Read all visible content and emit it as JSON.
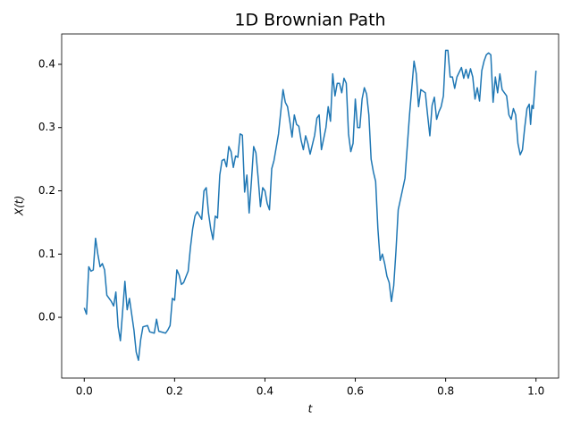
{
  "chart_data": {
    "type": "line",
    "title": "1D Brownian Path",
    "x_label": "t",
    "y_label": "X(t)",
    "x": [
      0,
      0.005,
      0.01,
      0.015,
      0.02,
      0.025,
      0.03,
      0.035,
      0.04,
      0.045,
      0.05,
      0.06,
      0.065,
      0.07,
      0.075,
      0.08,
      0.085,
      0.09,
      0.095,
      0.1,
      0.11,
      0.115,
      0.12,
      0.125,
      0.13,
      0.14,
      0.145,
      0.155,
      0.16,
      0.165,
      0.18,
      0.185,
      0.19,
      0.195,
      0.2,
      0.205,
      0.21,
      0.215,
      0.22,
      0.23,
      0.235,
      0.24,
      0.245,
      0.25,
      0.26,
      0.265,
      0.27,
      0.275,
      0.28,
      0.285,
      0.29,
      0.295,
      0.3,
      0.305,
      0.31,
      0.315,
      0.32,
      0.325,
      0.33,
      0.335,
      0.34,
      0.345,
      0.35,
      0.355,
      0.36,
      0.365,
      0.37,
      0.375,
      0.38,
      0.385,
      0.39,
      0.395,
      0.4,
      0.405,
      0.41,
      0.415,
      0.42,
      0.43,
      0.44,
      0.445,
      0.45,
      0.455,
      0.46,
      0.465,
      0.47,
      0.475,
      0.48,
      0.485,
      0.49,
      0.495,
      0.5,
      0.51,
      0.515,
      0.52,
      0.525,
      0.535,
      0.54,
      0.545,
      0.55,
      0.555,
      0.56,
      0.565,
      0.57,
      0.575,
      0.58,
      0.585,
      0.59,
      0.595,
      0.6,
      0.605,
      0.61,
      0.615,
      0.62,
      0.625,
      0.63,
      0.635,
      0.64,
      0.645,
      0.65,
      0.655,
      0.66,
      0.665,
      0.67,
      0.675,
      0.68,
      0.685,
      0.69,
      0.695,
      0.71,
      0.72,
      0.73,
      0.735,
      0.74,
      0.745,
      0.755,
      0.76,
      0.765,
      0.77,
      0.775,
      0.78,
      0.785,
      0.79,
      0.795,
      0.8,
      0.805,
      0.81,
      0.815,
      0.82,
      0.825,
      0.835,
      0.84,
      0.845,
      0.85,
      0.855,
      0.86,
      0.865,
      0.87,
      0.875,
      0.88,
      0.885,
      0.89,
      0.895,
      0.9,
      0.905,
      0.91,
      0.915,
      0.92,
      0.925,
      0.935,
      0.94,
      0.945,
      0.95,
      0.955,
      0.96,
      0.965,
      0.97,
      0.975,
      0.98,
      0.985,
      0.988,
      0.991,
      0.994,
      0.997,
      1.0
    ],
    "series": [
      {
        "name": "X(t)",
        "color": "#1f77b4",
        "values": [
          0.015,
          0.005,
          0.08,
          0.073,
          0.075,
          0.125,
          0.1,
          0.08,
          0.085,
          0.075,
          0.035,
          0.025,
          0.018,
          0.04,
          -0.015,
          -0.037,
          0.01,
          0.057,
          0.012,
          0.03,
          -0.02,
          -0.055,
          -0.068,
          -0.035,
          -0.015,
          -0.013,
          -0.023,
          -0.025,
          -0.003,
          -0.022,
          -0.025,
          -0.02,
          -0.013,
          0.03,
          0.027,
          0.075,
          0.067,
          0.052,
          0.055,
          0.073,
          0.11,
          0.14,
          0.16,
          0.167,
          0.155,
          0.2,
          0.205,
          0.165,
          0.14,
          0.123,
          0.16,
          0.157,
          0.225,
          0.248,
          0.25,
          0.238,
          0.27,
          0.262,
          0.237,
          0.255,
          0.253,
          0.29,
          0.288,
          0.198,
          0.225,
          0.165,
          0.215,
          0.27,
          0.26,
          0.22,
          0.175,
          0.205,
          0.2,
          0.18,
          0.17,
          0.235,
          0.248,
          0.29,
          0.36,
          0.34,
          0.333,
          0.31,
          0.285,
          0.32,
          0.305,
          0.302,
          0.28,
          0.265,
          0.287,
          0.275,
          0.258,
          0.288,
          0.315,
          0.32,
          0.265,
          0.3,
          0.333,
          0.31,
          0.385,
          0.35,
          0.37,
          0.37,
          0.355,
          0.378,
          0.37,
          0.29,
          0.262,
          0.275,
          0.345,
          0.3,
          0.3,
          0.345,
          0.363,
          0.353,
          0.32,
          0.25,
          0.23,
          0.215,
          0.14,
          0.09,
          0.1,
          0.085,
          0.065,
          0.055,
          0.025,
          0.05,
          0.105,
          0.17,
          0.22,
          0.32,
          0.405,
          0.385,
          0.333,
          0.36,
          0.355,
          0.32,
          0.287,
          0.335,
          0.348,
          0.313,
          0.325,
          0.333,
          0.35,
          0.422,
          0.422,
          0.38,
          0.38,
          0.362,
          0.38,
          0.395,
          0.378,
          0.392,
          0.378,
          0.393,
          0.38,
          0.345,
          0.363,
          0.342,
          0.39,
          0.405,
          0.415,
          0.418,
          0.415,
          0.34,
          0.38,
          0.355,
          0.385,
          0.36,
          0.35,
          0.32,
          0.313,
          0.33,
          0.32,
          0.275,
          0.257,
          0.265,
          0.3,
          0.33,
          0.337,
          0.305,
          0.335,
          0.33,
          0.36,
          0.39
        ]
      }
    ],
    "xlim": [
      -0.05,
      1.05
    ],
    "ylim": [
      -0.096,
      0.448
    ],
    "xticks": [
      {
        "value": 0,
        "label": "0.0"
      },
      0.2,
      0.4,
      0.6,
      0.8,
      {
        "value": 1,
        "label": "1.0"
      }
    ],
    "yticks": [
      {
        "value": 0,
        "label": "0.0"
      },
      0.1,
      0.2,
      0.3,
      0.4
    ],
    "grid": false
  }
}
